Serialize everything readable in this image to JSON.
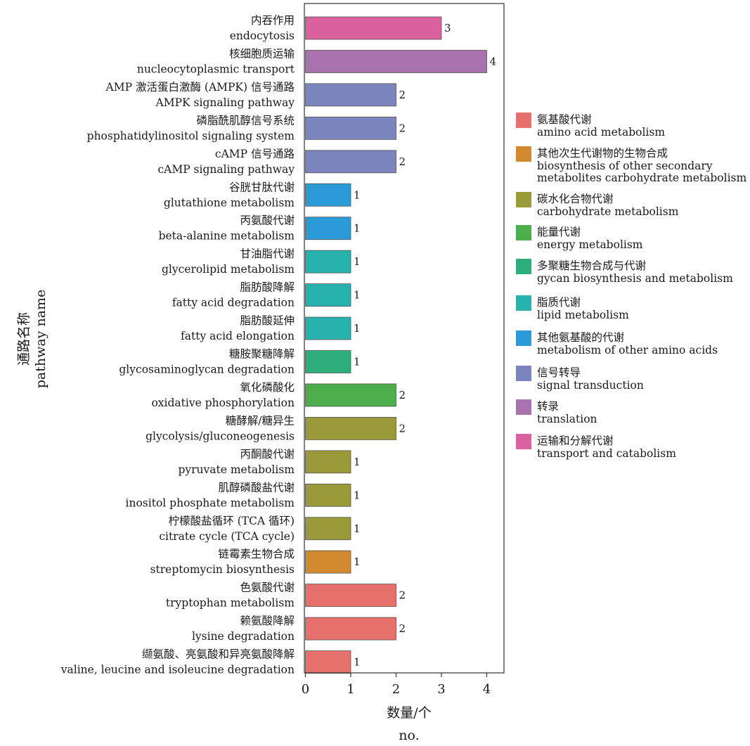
{
  "chart_data": {
    "type": "bar",
    "orientation": "horizontal",
    "title": "",
    "xlabel": [
      "数量/个",
      "no."
    ],
    "ylabel": [
      "通路名称",
      "pathway name"
    ],
    "xlim": [
      0,
      4.4
    ],
    "xticks": [
      "0",
      "1",
      "2",
      "3",
      "4"
    ],
    "grid": false,
    "legend_position": "right",
    "categories": [
      {
        "zh": "内吞作用",
        "en": "endocytosis",
        "value": 3,
        "value_label": "3",
        "group": 9
      },
      {
        "zh": "核细胞质运输",
        "en": "nucleocytoplasmic transport",
        "value": 4,
        "value_label": "4",
        "group": 8
      },
      {
        "zh": "AMP 激活蛋白激酶 (AMPK) 信号通路",
        "en": "AMPK signaling pathway",
        "value": 2,
        "value_label": "2",
        "group": 7
      },
      {
        "zh": "磷脂酰肌醇信号系统",
        "en": "phosphatidylinositol signaling system",
        "value": 2,
        "value_label": "2",
        "group": 7
      },
      {
        "zh": "cAMP 信号通路",
        "en": "cAMP signaling pathway",
        "value": 2,
        "value_label": "2",
        "group": 7
      },
      {
        "zh": "谷胱甘肽代谢",
        "en": "glutathione metabolism",
        "value": 1,
        "value_label": "1",
        "group": 6
      },
      {
        "zh": "丙氨酸代谢",
        "en": "beta-alanine metabolism",
        "value": 1,
        "value_label": "1",
        "group": 6
      },
      {
        "zh": "甘油脂代谢",
        "en": "glycerolipid metabolism",
        "value": 1,
        "value_label": "1",
        "group": 5
      },
      {
        "zh": "脂肪酸降解",
        "en": "fatty acid degradation",
        "value": 1,
        "value_label": "1",
        "group": 5
      },
      {
        "zh": "脂肪酸延伸",
        "en": "fatty acid elongation",
        "value": 1,
        "value_label": "1",
        "group": 5
      },
      {
        "zh": "糖胺聚糖降解",
        "en": "glycosaminoglycan degradation",
        "value": 1,
        "value_label": "1",
        "group": 4
      },
      {
        "zh": "氧化磷酸化",
        "en": "oxidative phosphorylation",
        "value": 2,
        "value_label": "2",
        "group": 3
      },
      {
        "zh": "糖酵解/糖异生",
        "en": "glycolysis/gluconeogenesis",
        "value": 2,
        "value_label": "2",
        "group": 2
      },
      {
        "zh": "丙酮酸代谢",
        "en": "pyruvate metabolism",
        "value": 1,
        "value_label": "1",
        "group": 2
      },
      {
        "zh": "肌醇磷酸盐代谢",
        "en": "inositol phosphate metabolism",
        "value": 1,
        "value_label": "1",
        "group": 2
      },
      {
        "zh": "柠檬酸盐循环 (TCA 循环)",
        "en": "citrate cycle (TCA cycle)",
        "value": 1,
        "value_label": "1",
        "group": 2
      },
      {
        "zh": "链霉素生物合成",
        "en": "streptomycin biosynthesis",
        "value": 1,
        "value_label": "1",
        "group": 1
      },
      {
        "zh": "色氨酸代谢",
        "en": "tryptophan metabolism",
        "value": 2,
        "value_label": "2",
        "group": 0
      },
      {
        "zh": "赖氨酸降解",
        "en": "lysine degradation",
        "value": 2,
        "value_label": "2",
        "group": 0
      },
      {
        "zh": "缬氨酸、亮氨酸和异亮氨酸降解",
        "en": "valine, leucine and isoleucine degradation",
        "value": 1,
        "value_label": "1",
        "group": 0
      }
    ],
    "legend": [
      {
        "zh": "氨基酸代谢",
        "en": [
          "amino acid metabolism"
        ],
        "color": "#E5706C"
      },
      {
        "zh": "其他次生代谢物的生物合成",
        "en": [
          "biosynthesis of other secondary",
          "metabolites carbohydrate metabolism"
        ],
        "color": "#D18A2F"
      },
      {
        "zh": "碳水化合物代谢",
        "en": [
          "carbohydrate metabolism"
        ],
        "color": "#9A9A3A"
      },
      {
        "zh": "能量代谢",
        "en": [
          "energy metabolism"
        ],
        "color": "#4BAE4B"
      },
      {
        "zh": "多聚糖生物合成与代谢",
        "en": [
          "gycan biosynthesis and metabolism"
        ],
        "color": "#2EAE7A"
      },
      {
        "zh": "脂质代谢",
        "en": [
          "lipid metabolism"
        ],
        "color": "#27B2AE"
      },
      {
        "zh": "其他氨基酸的代谢",
        "en": [
          "metabolism of other amino acids"
        ],
        "color": "#2C9AD6"
      },
      {
        "zh": "信号转导",
        "en": [
          "signal transduction"
        ],
        "color": "#7C84BE"
      },
      {
        "zh": "转录",
        "en": [
          "translation"
        ],
        "color": "#A772AD"
      },
      {
        "zh": "运输和分解代谢",
        "en": [
          "transport and catabolism"
        ],
        "color": "#D9629F"
      }
    ]
  }
}
